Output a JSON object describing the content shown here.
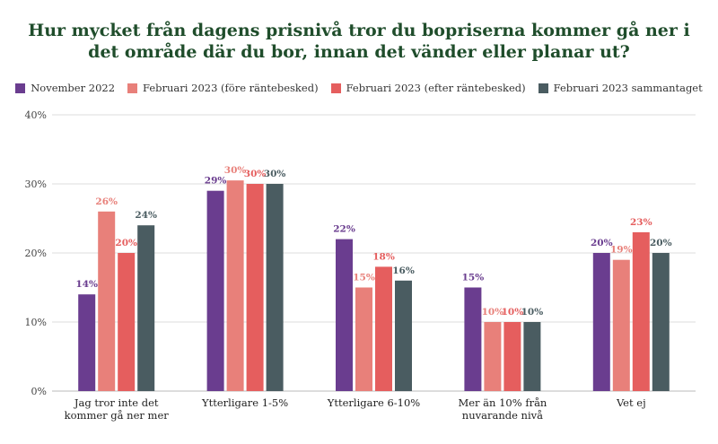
{
  "chart_data": {
    "type": "bar",
    "title": "Hur mycket från dagens prisnivå tror du bopriserna kommer gå ner i det område där du bor, innan det vänder eller planar ut?",
    "title_lines": [
      "Hur mycket från dagens prisnivå tror du bopriserna kommer gå ner i",
      "det område där du bor, innan det vänder eller planar ut?"
    ],
    "categories": [
      [
        "Jag tror inte det",
        "kommer gå ner mer"
      ],
      [
        "Ytterligare 1-5%"
      ],
      [
        "Ytterligare 6-10%"
      ],
      [
        "Mer än 10% från",
        "nuvarande nivå"
      ],
      [
        "Vet ej"
      ]
    ],
    "series": [
      {
        "name": "November 2022",
        "color": "#6a3d8f",
        "label_color": "#6a3d8f",
        "values": [
          14,
          29,
          22,
          15,
          20
        ],
        "labels": [
          "14%",
          "29%",
          "22%",
          "15%",
          "20%"
        ]
      },
      {
        "name": "Februari 2023 (före räntebesked)",
        "color": "#e8807a",
        "label_color": "#e8807a",
        "values": [
          26,
          30.5,
          15,
          10,
          19
        ],
        "labels": [
          "26%",
          "30%",
          "15%",
          "10%",
          "19%"
        ]
      },
      {
        "name": "Februari 2023 (efter räntebesked)",
        "color": "#e55e5e",
        "label_color": "#e55e5e",
        "values": [
          20,
          30,
          18,
          10,
          23
        ],
        "labels": [
          "20%",
          "30%",
          "18%",
          "10%",
          "23%"
        ]
      },
      {
        "name": "Februari 2023 sammantaget",
        "color": "#4a5c61",
        "label_color": "#4a5c61",
        "values": [
          24,
          30,
          16,
          10,
          20
        ],
        "labels": [
          "24%",
          "30%",
          "16%",
          "10%",
          "20%"
        ]
      }
    ],
    "yticks": [
      "0%",
      "10%",
      "20%",
      "30%",
      "40%"
    ],
    "ylim": [
      0,
      40
    ],
    "grid": true,
    "legend_position": "top"
  }
}
